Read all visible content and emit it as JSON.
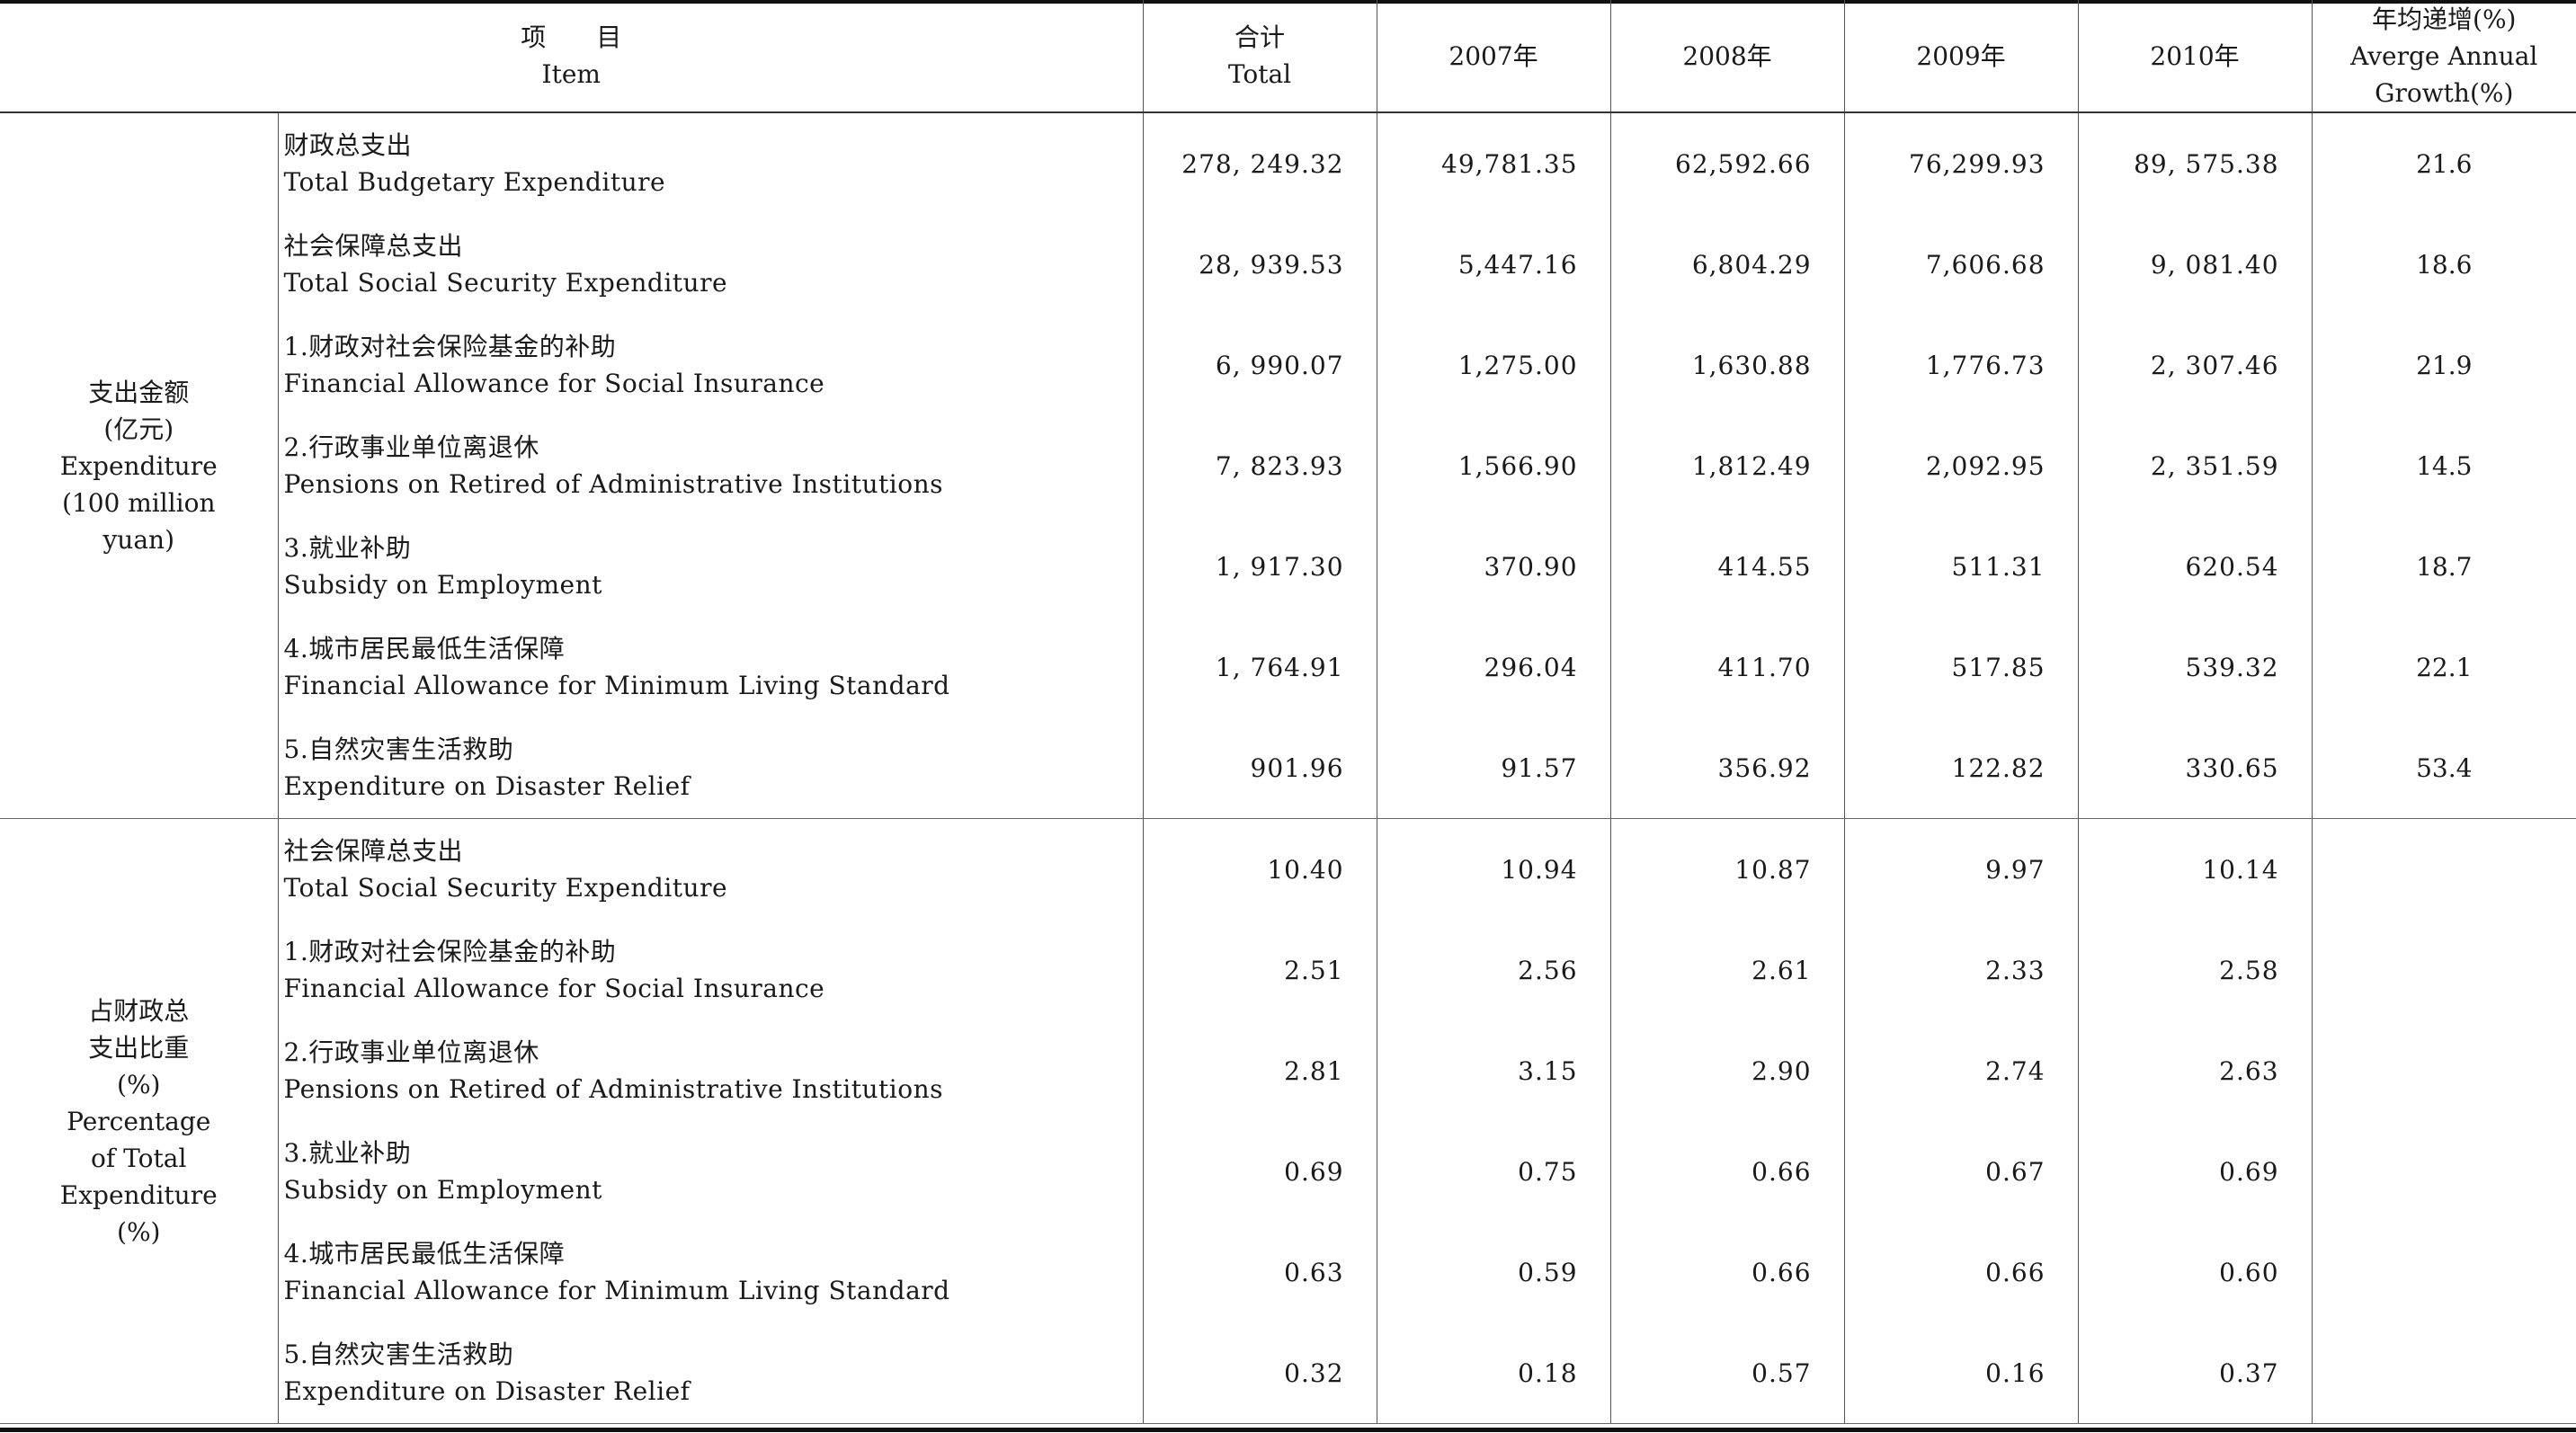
{
  "header": {
    "item_zh": "项　　目",
    "item_en": "Item",
    "total_zh": "合计",
    "total_en": "Total",
    "y2007": "2007年",
    "y2008": "2008年",
    "y2009": "2009年",
    "y2010": "2010年",
    "growth_zh": "年均递增(%)",
    "growth_en1": "Averge Annual",
    "growth_en2": "Growth(%)"
  },
  "groups": {
    "expenditure": {
      "line1": "支出金额",
      "line2": "(亿元)",
      "line3": "Expenditure",
      "line4": "(100 million",
      "line5": "yuan)"
    },
    "percentage": {
      "line1": "占财政总",
      "line2": "支出比重",
      "line3": "(%)",
      "line4": "Percentage",
      "line5": "of Total",
      "line6": "Expenditure",
      "line7": "(%)"
    }
  },
  "rows": [
    {
      "zh": "财政总支出",
      "en": "Total Budgetary Expenditure",
      "total": "278, 249.32",
      "y2007": "49,781.35",
      "y2008": "62,592.66",
      "y2009": "76,299.93",
      "y2010": "89, 575.38",
      "growth": "21.6"
    },
    {
      "zh": "社会保障总支出",
      "en": "Total Social Security Expenditure",
      "total": "28, 939.53",
      "y2007": "5,447.16",
      "y2008": "6,804.29",
      "y2009": "7,606.68",
      "y2010": "9, 081.40",
      "growth": "18.6"
    },
    {
      "zh": "1.财政对社会保险基金的补助",
      "en": "Financial Allowance for Social Insurance",
      "total": "6, 990.07",
      "y2007": "1,275.00",
      "y2008": "1,630.88",
      "y2009": "1,776.73",
      "y2010": "2, 307.46",
      "growth": "21.9"
    },
    {
      "zh": "2.行政事业单位离退休",
      "en": "Pensions on Retired of Administrative Institutions",
      "total": "7, 823.93",
      "y2007": "1,566.90",
      "y2008": "1,812.49",
      "y2009": "2,092.95",
      "y2010": "2, 351.59",
      "growth": "14.5"
    },
    {
      "zh": "3.就业补助",
      "en": "Subsidy on Employment",
      "total": "1, 917.30",
      "y2007": "370.90",
      "y2008": "414.55",
      "y2009": "511.31",
      "y2010": "620.54",
      "growth": "18.7"
    },
    {
      "zh": "4.城市居民最低生活保障",
      "en": "Financial Allowance for Minimum Living Standard",
      "total": "1, 764.91",
      "y2007": "296.04",
      "y2008": "411.70",
      "y2009": "517.85",
      "y2010": "539.32",
      "growth": "22.1"
    },
    {
      "zh": "5.自然灾害生活救助",
      "en": "Expenditure on Disaster Relief",
      "total": "901.96",
      "y2007": "91.57",
      "y2008": "356.92",
      "y2009": "122.82",
      "y2010": "330.65",
      "growth": "53.4"
    },
    {
      "zh": "社会保障总支出",
      "en": "Total Social Security Expenditure",
      "total": "10.40",
      "y2007": "10.94",
      "y2008": "10.87",
      "y2009": "9.97",
      "y2010": "10.14",
      "growth": ""
    },
    {
      "zh": "1.财政对社会保险基金的补助",
      "en": "Financial Allowance for Social Insurance",
      "total": "2.51",
      "y2007": "2.56",
      "y2008": "2.61",
      "y2009": "2.33",
      "y2010": "2.58",
      "growth": ""
    },
    {
      "zh": "2.行政事业单位离退休",
      "en": "Pensions on Retired of Administrative Institutions",
      "total": "2.81",
      "y2007": "3.15",
      "y2008": "2.90",
      "y2009": "2.74",
      "y2010": "2.63",
      "growth": ""
    },
    {
      "zh": "3.就业补助",
      "en": "Subsidy on Employment",
      "total": "0.69",
      "y2007": "0.75",
      "y2008": "0.66",
      "y2009": "0.67",
      "y2010": "0.69",
      "growth": ""
    },
    {
      "zh": "4.城市居民最低生活保障",
      "en": "Financial Allowance for Minimum Living Standard",
      "total": "0.63",
      "y2007": "0.59",
      "y2008": "0.66",
      "y2009": "0.66",
      "y2010": "0.60",
      "growth": ""
    },
    {
      "zh": "5.自然灾害生活救助",
      "en": "Expenditure on Disaster Relief",
      "total": "0.32",
      "y2007": "0.18",
      "y2008": "0.57",
      "y2009": "0.16",
      "y2010": "0.37",
      "growth": ""
    }
  ]
}
